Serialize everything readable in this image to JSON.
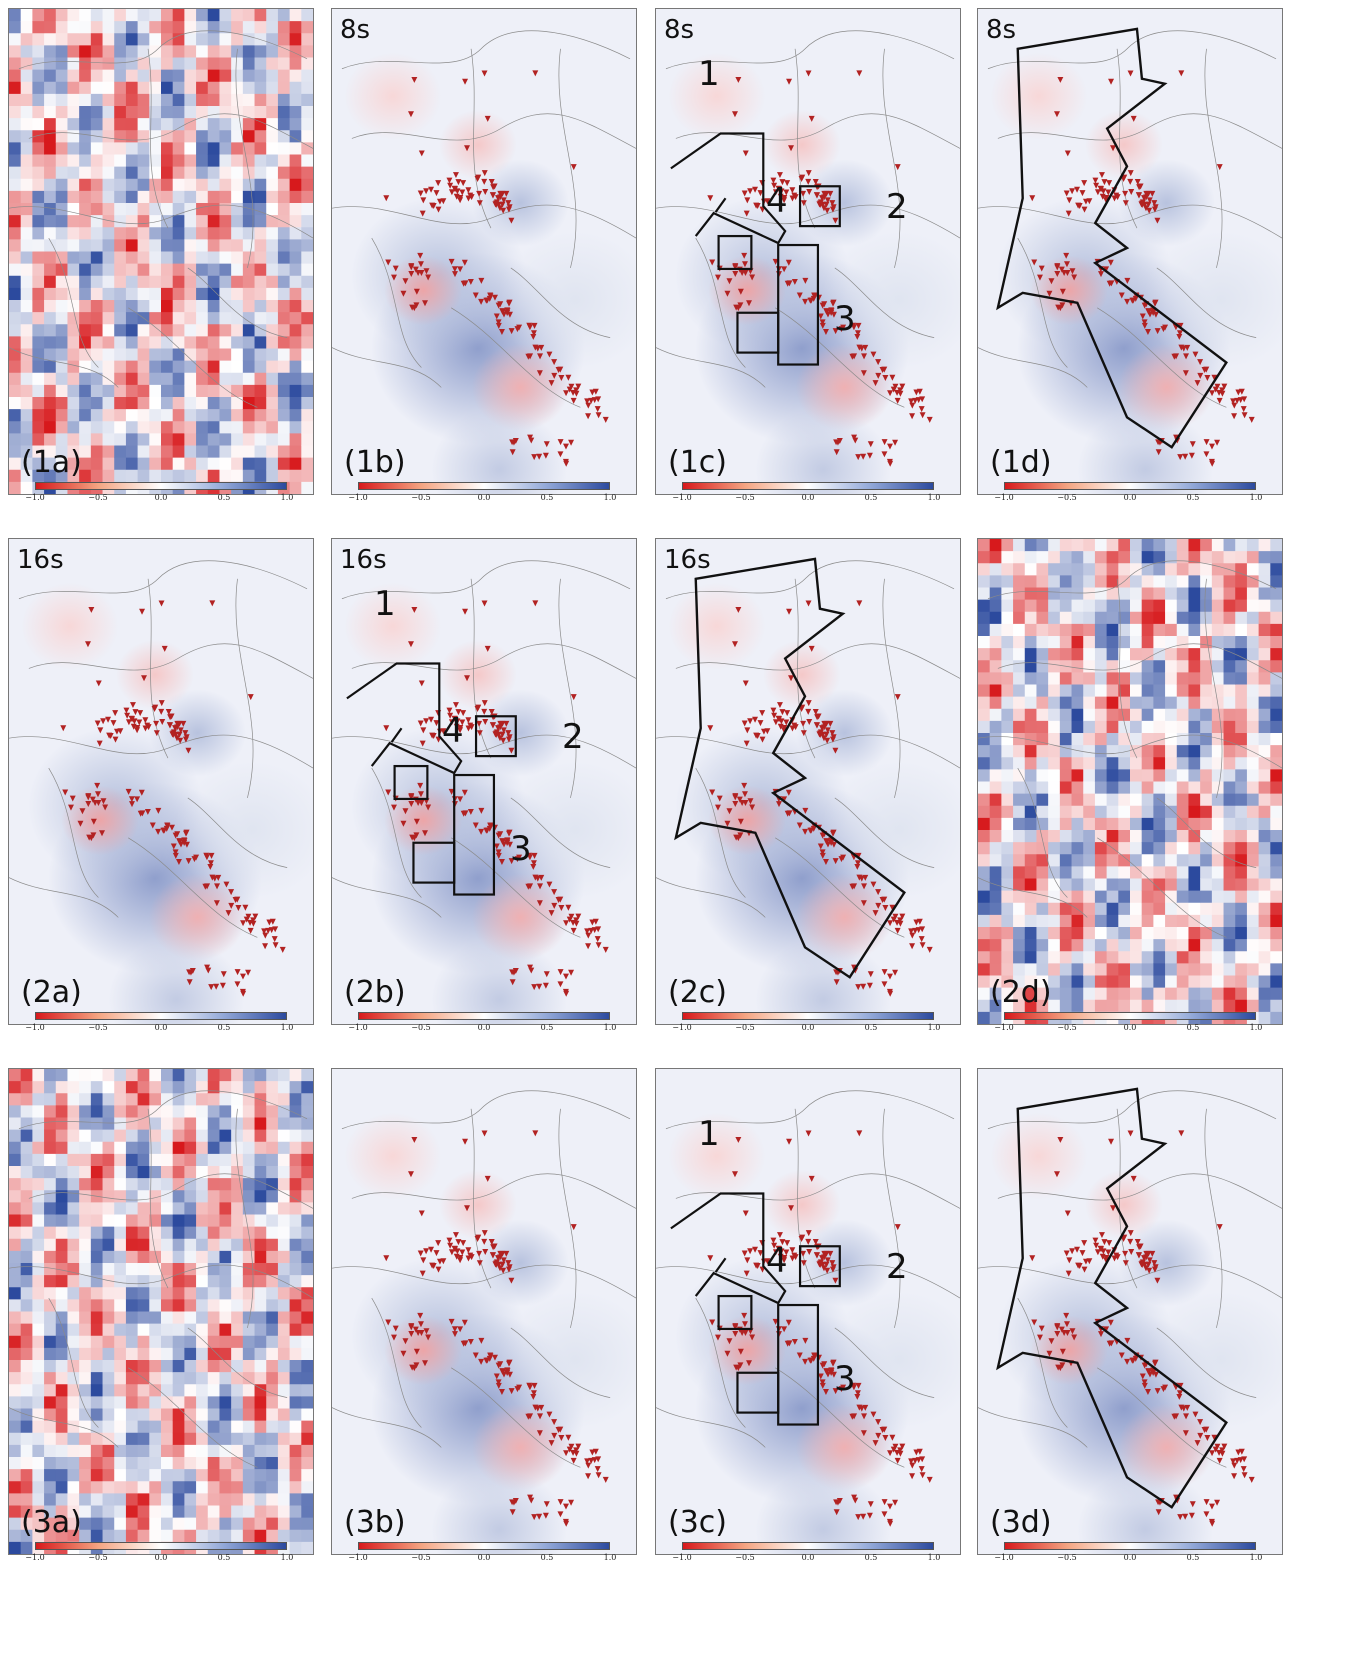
{
  "panels": [
    {
      "id": "1a",
      "label": "(1a)",
      "period": "",
      "kind": "noise",
      "overlay": "none"
    },
    {
      "id": "1b",
      "label": "(1b)",
      "period": "8s",
      "kind": "smooth",
      "overlay": "none"
    },
    {
      "id": "1c",
      "label": "(1c)",
      "period": "8s",
      "kind": "smooth",
      "overlay": "regions"
    },
    {
      "id": "1d",
      "label": "(1d)",
      "period": "8s",
      "kind": "smooth",
      "overlay": "polygon"
    },
    {
      "id": "2a",
      "label": "(2a)",
      "period": "16s",
      "kind": "smooth",
      "overlay": "none"
    },
    {
      "id": "2b",
      "label": "(2b)",
      "period": "16s",
      "kind": "smooth",
      "overlay": "regions"
    },
    {
      "id": "2c",
      "label": "(2c)",
      "period": "16s",
      "kind": "smooth",
      "overlay": "polygon"
    },
    {
      "id": "2d",
      "label": "(2d)",
      "period": "",
      "kind": "noise",
      "overlay": "none"
    },
    {
      "id": "3a",
      "label": "(3a)",
      "period": "",
      "kind": "noise",
      "overlay": "none"
    },
    {
      "id": "3b",
      "label": "(3b)",
      "period": "",
      "kind": "smooth",
      "overlay": "none"
    },
    {
      "id": "3c",
      "label": "(3c)",
      "period": "",
      "kind": "smooth",
      "overlay": "regions"
    },
    {
      "id": "3d",
      "label": "(3d)",
      "period": "",
      "kind": "smooth",
      "overlay": "polygon"
    }
  ],
  "region_numbers": [
    "1",
    "2",
    "3",
    "4"
  ],
  "colorbar_ticks": [
    "−1.0",
    "−0.5",
    "0.0",
    "0.5",
    "1.0"
  ],
  "colors": {
    "negative": "#d7191c",
    "zero": "#ffffff",
    "positive": "#2c4a9e",
    "station": "#b22222"
  }
}
